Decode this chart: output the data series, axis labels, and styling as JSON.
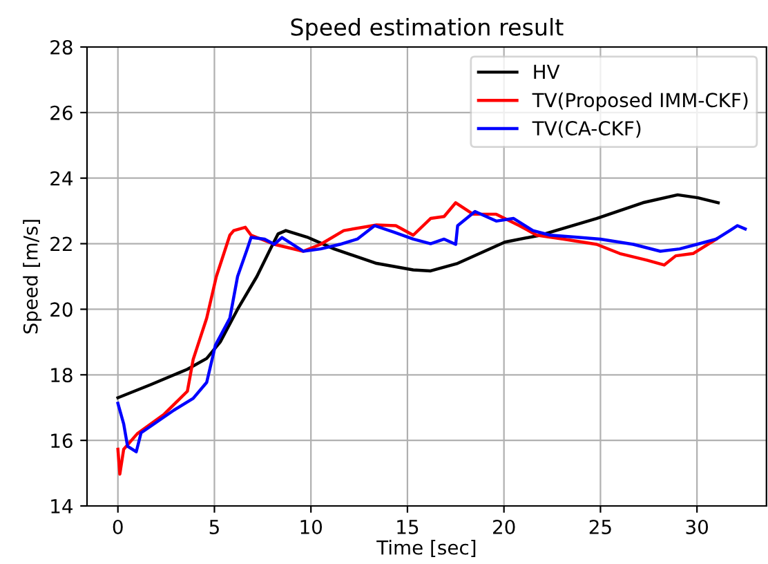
{
  "chart_data": {
    "type": "line",
    "title": "Speed estimation result",
    "xlabel": "Time [sec]",
    "ylabel": "Speed [m/s]",
    "xlim": [
      -1.6,
      33.6
    ],
    "xticks": [
      0,
      5,
      10,
      15,
      20,
      25,
      30
    ],
    "ylim": [
      14,
      28
    ],
    "yticks": [
      14,
      16,
      18,
      20,
      22,
      24,
      26,
      28
    ],
    "grid": true,
    "legend": "top right",
    "series": [
      {
        "name": "HV",
        "color": "#000000",
        "x": [
          0,
          1.7,
          3.6,
          4.6,
          5.3,
          6.2,
          7.2,
          7.9,
          8.3,
          8.7,
          9.8,
          11.2,
          13.4,
          15.3,
          16.2,
          17.6,
          20.05,
          21.9,
          24.8,
          27.2,
          29.0,
          30.05,
          31.1
        ],
        "values": [
          17.3,
          17.7,
          18.17,
          18.5,
          19.0,
          20.0,
          21.0,
          21.84,
          22.3,
          22.4,
          22.2,
          21.84,
          21.4,
          21.2,
          21.17,
          21.4,
          22.05,
          22.26,
          22.77,
          23.25,
          23.49,
          23.4,
          23.25
        ]
      },
      {
        "name": "TV(Proposed IMM-CKF)",
        "color": "#ff0000",
        "x": [
          0,
          0.1,
          0.3,
          1.0,
          2.4,
          3.6,
          3.9,
          4.6,
          5.1,
          5.8,
          6.0,
          6.6,
          6.9,
          8.1,
          9.6,
          10.5,
          11.7,
          13.4,
          14.4,
          15.3,
          16.2,
          16.9,
          17.5,
          18.4,
          19.6,
          20.8,
          21.7,
          23.1,
          24.8,
          26.0,
          27.4,
          28.3,
          28.9,
          29.8,
          31.0
        ],
        "values": [
          15.73,
          14.97,
          15.73,
          16.2,
          16.8,
          17.5,
          18.47,
          19.73,
          21.0,
          22.26,
          22.4,
          22.5,
          22.26,
          21.98,
          21.77,
          21.98,
          22.4,
          22.57,
          22.55,
          22.26,
          22.77,
          22.83,
          23.25,
          22.9,
          22.9,
          22.55,
          22.26,
          22.14,
          21.98,
          21.7,
          21.5,
          21.35,
          21.63,
          21.7,
          22.14
        ]
      },
      {
        "name": "TV(CA-CKF)",
        "color": "#0000ff",
        "x": [
          0,
          0.3,
          0.5,
          0.95,
          1.2,
          2.9,
          3.9,
          4.6,
          5.05,
          5.8,
          6.2,
          6.7,
          6.9,
          7.6,
          8.1,
          8.5,
          9.6,
          10.5,
          11.5,
          12.4,
          13.3,
          14.3,
          15.3,
          16.2,
          16.9,
          17.5,
          17.6,
          18.5,
          19.6,
          20.5,
          21.5,
          22.4,
          23.9,
          25.0,
          26.7,
          28.1,
          29.1,
          30.0,
          31.0,
          31.7,
          32.1,
          32.5
        ],
        "values": [
          17.13,
          16.5,
          15.82,
          15.65,
          16.23,
          16.92,
          17.28,
          17.77,
          18.9,
          19.73,
          21.0,
          21.84,
          22.19,
          22.14,
          21.98,
          22.19,
          21.77,
          21.84,
          21.98,
          22.14,
          22.55,
          22.35,
          22.14,
          22.0,
          22.14,
          21.98,
          22.55,
          22.98,
          22.69,
          22.77,
          22.4,
          22.26,
          22.19,
          22.14,
          21.98,
          21.77,
          21.84,
          21.98,
          22.14,
          22.4,
          22.55,
          22.45
        ]
      }
    ]
  }
}
